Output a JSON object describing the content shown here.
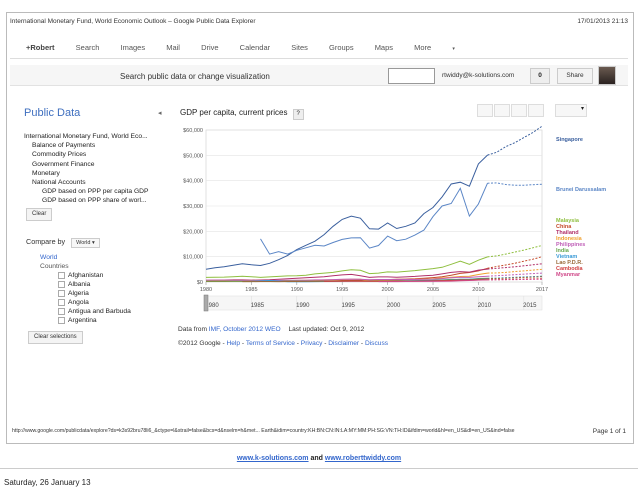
{
  "print_header": {
    "title": "International Monetary Fund, World Economic Outlook – Google Public Data Explorer",
    "timestamp": "17/01/2013 21:13"
  },
  "gbar": {
    "items": [
      "+Robert",
      "Search",
      "Images",
      "Mail",
      "Drive",
      "Calendar",
      "Sites",
      "Groups",
      "Maps",
      "More"
    ],
    "more_caret": "▾"
  },
  "toprow": {
    "search_label": "Search public data or change visualization",
    "account": "rtwiddy@k-solutions.com",
    "notification_count": "0",
    "share_label": "Share"
  },
  "left": {
    "title": "Public Data",
    "collapse_glyph": "◂",
    "tree": [
      {
        "label": "International Monetary Fund, World Eco...",
        "indent": 0
      },
      {
        "label": "Balance of Payments",
        "indent": 1
      },
      {
        "label": "Commodity Prices",
        "indent": 1
      },
      {
        "label": "Government Finance",
        "indent": 1
      },
      {
        "label": "Monetary",
        "indent": 1
      },
      {
        "label": "National Accounts",
        "indent": 1
      },
      {
        "label": "GDP based on PPP per capita GDP",
        "indent": 2
      },
      {
        "label": "GDP based on PPP share of worl...",
        "indent": 2
      }
    ],
    "clear_label": "Clear",
    "compare_label": "Compare by",
    "world_dropdown": "World ▾",
    "world_label": "World",
    "countries_label": "Countries",
    "countries": [
      "Afghanistan",
      "Albania",
      "Algeria",
      "Angola",
      "Antigua and Barbuda",
      "Argentina"
    ],
    "clear_selections_label": "Clear selections"
  },
  "chart_header": {
    "title": "GDP per capita, current prices",
    "help": "?",
    "dropdown_caret": "▾"
  },
  "footer": {
    "data_from_prefix": "Data from",
    "data_from_link": "IMF, October 2012 WEO",
    "last_updated": "Last updated: Oct 9, 2012",
    "copyright": "©2012 Google",
    "links": [
      "Help",
      "Terms of Service",
      "Privacy",
      "Disclaimer",
      "Discuss"
    ],
    "sep": " - "
  },
  "print_footer": {
    "url": "http://www.google.com/publicdata/explore?ds=k3s92bru78li6_&ctype=l&strail=false&bcs=d&nselm=h&met... Earth&idim=country:KH:BN:CN:IN:LA:MY:MM:PH:SG:VN:TH:ID&ifdim=world&hl=en_US&dl=en_US&ind=false",
    "page": "Page 1 of 1",
    "site1": "www.k-solutions.com",
    "and": "and",
    "site2": "www.roberttwiddy.com",
    "date": "Saturday, 26 January 13"
  },
  "colors": {
    "singapore": "#3a5f9e",
    "brunei": "#5b86c6",
    "malaysia": "#8fbf3f",
    "china": "#c44a2a",
    "thailand": "#b1306a",
    "indonesia": "#f0a030",
    "philippines": "#c060b8",
    "india": "#6aa84f",
    "vietnam": "#3a9ad6",
    "laos": "#9a6a3a",
    "cambodia": "#d04040",
    "myanmar": "#d04a8a"
  },
  "chart_data": {
    "type": "line",
    "title": "GDP per capita, current prices",
    "ylim": [
      0,
      60000
    ],
    "xlim": [
      1980,
      2017
    ],
    "y_ticks": [
      "$0",
      "$10,000",
      "$20,000",
      "$30,000",
      "$40,000",
      "$50,000",
      "$60,000"
    ],
    "y_tick_values": [
      0,
      10000,
      20000,
      30000,
      40000,
      50000,
      60000
    ],
    "x_ticks": [
      1980,
      1985,
      1990,
      1995,
      2000,
      2005,
      2010,
      2017
    ],
    "timeline_ticks": [
      1980,
      1985,
      1990,
      1995,
      2000,
      2005,
      2010,
      2015
    ],
    "forecast_from": 2011,
    "x": [
      1980,
      1981,
      1982,
      1983,
      1984,
      1985,
      1986,
      1987,
      1988,
      1989,
      1990,
      1991,
      1992,
      1993,
      1994,
      1995,
      1996,
      1997,
      1998,
      1999,
      2000,
      2001,
      2002,
      2003,
      2004,
      2005,
      2006,
      2007,
      2008,
      2009,
      2010,
      2011,
      2012,
      2013,
      2014,
      2015,
      2016,
      2017
    ],
    "series": [
      {
        "name": "Singapore",
        "color_key": "singapore",
        "values": [
          5000,
          5600,
          6000,
          6600,
          7200,
          6800,
          6500,
          7400,
          8800,
          10500,
          12800,
          14500,
          16100,
          18700,
          22000,
          24700,
          26000,
          25200,
          21000,
          20900,
          23300,
          21100,
          22000,
          23300,
          27000,
          29400,
          33600,
          38700,
          39400,
          37800,
          46600,
          50100,
          51200,
          53400,
          55000,
          57000,
          59000,
          61500
        ]
      },
      {
        "name": "Brunei Darussalam",
        "color_key": "brunei",
        "values": [
          null,
          null,
          null,
          null,
          null,
          null,
          17000,
          11000,
          12000,
          11000,
          12500,
          13500,
          14500,
          14200,
          15600,
          16800,
          17400,
          17500,
          13400,
          14400,
          18100,
          16300,
          16900,
          18500,
          20500,
          25800,
          30000,
          31000,
          37000,
          26000,
          30800,
          39000,
          39100,
          38500,
          38200,
          38200,
          38400,
          38600
        ]
      },
      {
        "name": "Malaysia",
        "color_key": "malaysia",
        "values": [
          1800,
          1900,
          1950,
          2100,
          2300,
          2100,
          1800,
          2000,
          2200,
          2400,
          2500,
          2700,
          3200,
          3500,
          3800,
          4400,
          4800,
          4600,
          3300,
          3500,
          4000,
          3900,
          4200,
          4500,
          4900,
          5300,
          5800,
          7000,
          8200,
          7000,
          8600,
          9900,
          10300,
          11000,
          11800,
          12600,
          13500,
          14400
        ]
      },
      {
        "name": "China",
        "color_key": "china",
        "values": [
          200,
          200,
          210,
          220,
          250,
          290,
          280,
          250,
          280,
          310,
          310,
          330,
          360,
          380,
          470,
          600,
          700,
          770,
          820,
          860,
          950,
          1050,
          1140,
          1280,
          1500,
          1730,
          2060,
          2650,
          3400,
          3740,
          4400,
          5400,
          6100,
          6700,
          7400,
          8200,
          9000,
          10000
        ]
      },
      {
        "name": "Thailand",
        "color_key": "thailand",
        "values": [
          700,
          740,
          770,
          810,
          820,
          750,
          800,
          900,
          1100,
          1280,
          1500,
          1700,
          1900,
          2100,
          2500,
          2800,
          3000,
          2500,
          1800,
          2000,
          2000,
          1900,
          2000,
          2200,
          2500,
          2700,
          3200,
          3800,
          4100,
          3900,
          4700,
          5100,
          5400,
          5700,
          6000,
          6400,
          6800,
          7200
        ]
      },
      {
        "name": "Indonesia",
        "color_key": "indonesia",
        "values": [
          500,
          570,
          600,
          560,
          560,
          540,
          480,
          470,
          500,
          560,
          620,
          680,
          730,
          810,
          880,
          1000,
          1100,
          1050,
          470,
          680,
          790,
          760,
          910,
          1060,
          1150,
          1260,
          1590,
          1860,
          2170,
          2270,
          2950,
          3500,
          3600,
          3800,
          4100,
          4400,
          4700,
          5000
        ]
      },
      {
        "name": "Philippines",
        "color_key": "philippines",
        "values": [
          700,
          760,
          760,
          650,
          600,
          570,
          540,
          580,
          640,
          700,
          720,
          710,
          810,
          810,
          930,
          1050,
          1150,
          1100,
          900,
          1000,
          1000,
          950,
          980,
          1000,
          1050,
          1150,
          1350,
          1650,
          1900,
          1800,
          2100,
          2300,
          2500,
          2700,
          2900,
          3100,
          3300,
          3500
        ]
      },
      {
        "name": "India",
        "color_key": "india",
        "values": [
          270,
          280,
          280,
          290,
          280,
          300,
          310,
          330,
          350,
          350,
          370,
          310,
          320,
          300,
          340,
          370,
          390,
          410,
          410,
          440,
          450,
          460,
          470,
          540,
          640,
          730,
          810,
          1040,
          1020,
          1120,
          1400,
          1500,
          1500,
          1600,
          1700,
          1850,
          2000,
          2200
        ]
      },
      {
        "name": "Vietnam",
        "color_key": "vietnam",
        "values": [
          null,
          null,
          null,
          null,
          null,
          230,
          430,
          580,
          400,
          100,
          100,
          130,
          140,
          190,
          220,
          280,
          330,
          360,
          360,
          370,
          400,
          410,
          440,
          490,
          550,
          640,
          720,
          840,
          1050,
          1070,
          1170,
          1370,
          1550,
          1700,
          1850,
          2000,
          2150,
          2300
        ]
      },
      {
        "name": "Lao P.D.R.",
        "color_key": "laos",
        "values": [
          null,
          null,
          null,
          null,
          150,
          170,
          190,
          210,
          150,
          180,
          200,
          230,
          250,
          280,
          320,
          360,
          380,
          350,
          260,
          280,
          320,
          320,
          310,
          370,
          420,
          480,
          580,
          710,
          880,
          910,
          1070,
          1250,
          1400,
          1500,
          1650,
          1800,
          1950,
          2100
        ]
      },
      {
        "name": "Cambodia",
        "color_key": "cambodia",
        "values": [
          null,
          null,
          null,
          null,
          null,
          null,
          null,
          null,
          null,
          null,
          null,
          null,
          null,
          220,
          260,
          300,
          310,
          300,
          270,
          290,
          290,
          300,
          310,
          330,
          370,
          450,
          500,
          600,
          700,
          700,
          780,
          900,
          950,
          1000,
          1080,
          1160,
          1240,
          1320
        ]
      },
      {
        "name": "Myanmar",
        "color_key": "myanmar",
        "values": [
          null,
          null,
          null,
          null,
          null,
          null,
          null,
          null,
          null,
          null,
          null,
          null,
          null,
          null,
          null,
          null,
          null,
          null,
          null,
          150,
          160,
          160,
          190,
          220,
          230,
          250,
          300,
          360,
          500,
          600,
          740,
          830,
          860,
          900,
          950,
          1000,
          1050,
          1100
        ]
      }
    ],
    "legend": [
      "Singapore",
      "Brunei Darussalam",
      "Malaysia",
      "China",
      "Thailand",
      "Indonesia",
      "Philippines",
      "India",
      "Vietnam",
      "Lao P.D.R.",
      "Cambodia",
      "Myanmar"
    ]
  }
}
